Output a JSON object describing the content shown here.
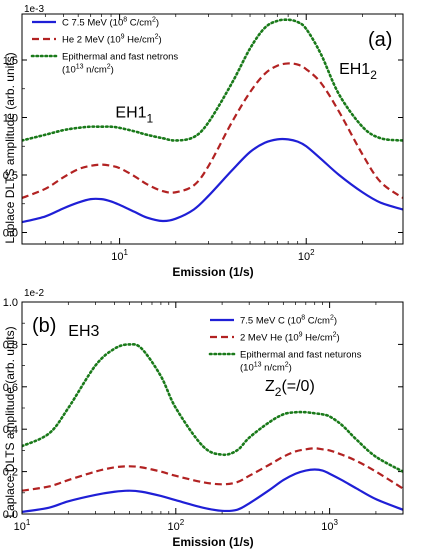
{
  "chart_data": [
    {
      "type": "line",
      "panel_label": "(a)",
      "multiplier": "1e-3",
      "xlabel": "Emission (1/s)",
      "ylabel": "Laplace DLTS amplitude (arb. units)",
      "xscale": "log",
      "xlim": [
        3,
        330
      ],
      "ylim": [
        -0.1,
        1.9
      ],
      "x_tick_labels": [
        {
          "value": 10,
          "base": "10",
          "exp": "1"
        },
        {
          "value": 100,
          "base": "10",
          "exp": "2"
        }
      ],
      "y_ticks": [
        0.0,
        0.5,
        1.0,
        1.5
      ],
      "y_tick_labels": [
        "0.0",
        "0.5",
        "1.0",
        "1.5"
      ],
      "legend_position": "top-left",
      "annotations": [
        {
          "base": "EH1",
          "sub": "1",
          "x": 9.5,
          "y": 1.0
        },
        {
          "base": "EH1",
          "sub": "2",
          "x": 150,
          "y": 1.38
        }
      ],
      "series": [
        {
          "legend_main": "C 7.5 MeV (10",
          "legend_sup": "8",
          "legend_mid": " C/cm",
          "legend_sup2": "2",
          "legend_tail": ")",
          "legend_line2": "",
          "color": "#1f1fd6",
          "dash": "solid",
          "x": [
            3,
            4,
            5,
            6,
            7,
            8,
            9,
            10,
            12,
            14,
            17,
            20,
            25,
            30,
            40,
            50,
            60,
            70,
            80,
            90,
            100,
            120,
            150,
            200,
            250,
            330
          ],
          "y": [
            0.09,
            0.14,
            0.21,
            0.26,
            0.29,
            0.29,
            0.27,
            0.24,
            0.18,
            0.13,
            0.1,
            0.12,
            0.2,
            0.32,
            0.54,
            0.7,
            0.78,
            0.81,
            0.81,
            0.79,
            0.75,
            0.64,
            0.5,
            0.35,
            0.26,
            0.2
          ]
        },
        {
          "legend_main": "He 2 MeV (10",
          "legend_sup": "9",
          "legend_mid": " He/cm",
          "legend_sup2": "2",
          "legend_tail": ")",
          "legend_line2": "",
          "color": "#b22222",
          "dash": "dashed",
          "x": [
            3,
            4,
            5,
            6,
            7,
            8,
            9,
            10,
            12,
            14,
            17,
            20,
            25,
            30,
            40,
            50,
            60,
            70,
            80,
            90,
            100,
            120,
            150,
            200,
            250,
            330
          ],
          "y": [
            0.3,
            0.38,
            0.48,
            0.55,
            0.58,
            0.59,
            0.58,
            0.56,
            0.49,
            0.42,
            0.36,
            0.35,
            0.41,
            0.58,
            0.96,
            1.22,
            1.38,
            1.45,
            1.47,
            1.46,
            1.42,
            1.3,
            1.05,
            0.68,
            0.44,
            0.3
          ]
        },
        {
          "legend_main": "Epithermal and fast netrons",
          "legend_sup": "",
          "legend_mid": "",
          "legend_sup2": "",
          "legend_tail": "",
          "legend_line2": "(10",
          "legend_line2_sup": "13",
          "legend_line2_mid": " n/cm",
          "legend_line2_sup2": "2",
          "legend_line2_tail": ")",
          "color": "#1a7a1a",
          "dash": "dotted",
          "x": [
            3,
            4,
            5,
            6,
            7,
            8,
            9,
            10,
            12,
            14,
            17,
            20,
            25,
            30,
            40,
            50,
            60,
            70,
            80,
            90,
            100,
            120,
            150,
            200,
            250,
            330
          ],
          "y": [
            0.8,
            0.85,
            0.89,
            0.91,
            0.92,
            0.92,
            0.92,
            0.91,
            0.88,
            0.85,
            0.82,
            0.8,
            0.83,
            0.96,
            1.3,
            1.6,
            1.78,
            1.84,
            1.85,
            1.83,
            1.77,
            1.55,
            1.2,
            0.92,
            0.82,
            0.8
          ]
        }
      ]
    },
    {
      "type": "line",
      "panel_label": "(b)",
      "multiplier": "1e-2",
      "xlabel": "Emission (1/s)",
      "ylabel": "Laplace DLTS amplitude (arb. units)",
      "xscale": "log",
      "xlim": [
        10,
        3000
      ],
      "ylim": [
        0.0,
        1.0
      ],
      "x_tick_labels": [
        {
          "value": 10,
          "base": "10",
          "exp": "1"
        },
        {
          "value": 100,
          "base": "10",
          "exp": "2"
        },
        {
          "value": 1000,
          "base": "10",
          "exp": "3"
        }
      ],
      "y_ticks": [
        0.0,
        0.2,
        0.4,
        0.6,
        0.8,
        1.0
      ],
      "y_tick_labels": [
        "0.0",
        "0.2",
        "0.4",
        "0.6",
        "0.8",
        "1.0"
      ],
      "legend_position": "top-right",
      "annotations": [
        {
          "base": "EH3",
          "sub": "",
          "suffix": "",
          "x": 20,
          "y": 0.84
        },
        {
          "base": "Z",
          "sub": "2",
          "suffix": "(=/0)",
          "x": 380,
          "y": 0.58
        }
      ],
      "series": [
        {
          "legend_main": "7.5 MeV C (10",
          "legend_sup": "8",
          "legend_mid": " C/cm",
          "legend_sup2": "2",
          "legend_tail": ")",
          "legend_line2": "",
          "color": "#1f1fd6",
          "dash": "solid",
          "x": [
            10,
            15,
            20,
            30,
            40,
            50,
            60,
            80,
            100,
            150,
            200,
            250,
            300,
            400,
            500,
            600,
            700,
            800,
            900,
            1000,
            1200,
            1500,
            2000,
            3000
          ],
          "y": [
            0.01,
            0.03,
            0.06,
            0.09,
            0.105,
            0.11,
            0.105,
            0.085,
            0.065,
            0.03,
            0.015,
            0.02,
            0.05,
            0.11,
            0.16,
            0.19,
            0.205,
            0.21,
            0.205,
            0.19,
            0.16,
            0.12,
            0.07,
            0.02
          ]
        },
        {
          "legend_main": "2 MeV He (10",
          "legend_sup": "9",
          "legend_mid": " He/cm",
          "legend_sup2": "2",
          "legend_tail": ")",
          "legend_line2": "",
          "color": "#b22222",
          "dash": "dashed",
          "x": [
            10,
            15,
            20,
            30,
            40,
            50,
            60,
            80,
            100,
            150,
            200,
            250,
            300,
            400,
            500,
            600,
            700,
            800,
            900,
            1000,
            1200,
            1500,
            2000,
            3000
          ],
          "y": [
            0.11,
            0.13,
            0.16,
            0.2,
            0.22,
            0.225,
            0.22,
            0.2,
            0.18,
            0.15,
            0.14,
            0.15,
            0.18,
            0.23,
            0.27,
            0.295,
            0.305,
            0.31,
            0.305,
            0.3,
            0.28,
            0.25,
            0.2,
            0.12
          ]
        },
        {
          "legend_main": "Epithermal and fast neturons",
          "legend_sup": "",
          "legend_mid": "",
          "legend_sup2": "",
          "legend_tail": "",
          "legend_line2": "(10",
          "legend_line2_sup": "13",
          "legend_line2_mid": " n/cm",
          "legend_line2_sup2": "2",
          "legend_line2_tail": ")",
          "color": "#1a7a1a",
          "dash": "dotted",
          "x": [
            10,
            15,
            20,
            30,
            40,
            50,
            60,
            80,
            100,
            150,
            200,
            250,
            300,
            400,
            500,
            600,
            700,
            800,
            900,
            1000,
            1200,
            1500,
            2000,
            3000
          ],
          "y": [
            0.32,
            0.38,
            0.5,
            0.7,
            0.78,
            0.8,
            0.78,
            0.65,
            0.5,
            0.32,
            0.28,
            0.3,
            0.36,
            0.43,
            0.47,
            0.48,
            0.48,
            0.475,
            0.47,
            0.46,
            0.42,
            0.35,
            0.27,
            0.2
          ]
        }
      ]
    }
  ]
}
